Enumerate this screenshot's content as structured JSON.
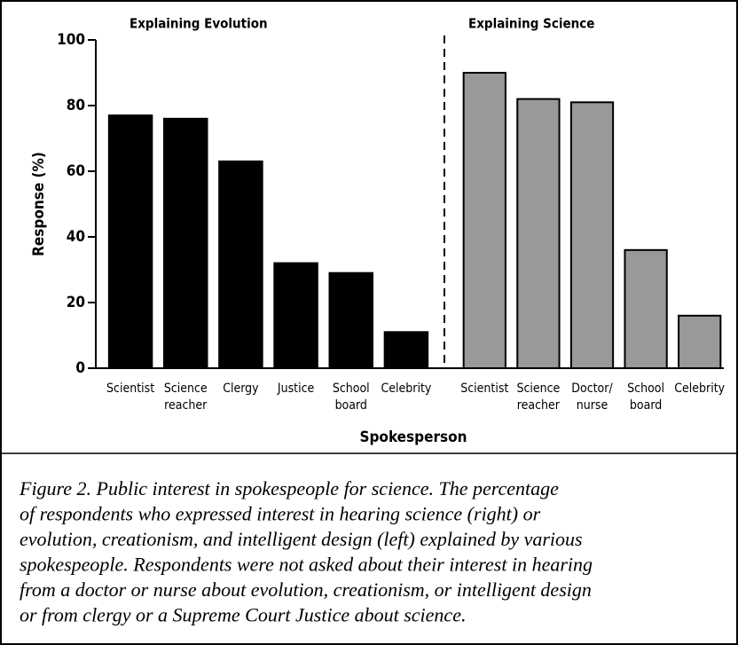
{
  "chart_data": [
    {
      "type": "bar",
      "title": "Explaining Evolution",
      "categories": [
        "Scientist",
        "Science\nreacher",
        "Clergy",
        "Justice",
        "School\nboard",
        "Celebrity"
      ],
      "values": [
        77,
        76,
        63,
        32,
        29,
        11
      ],
      "color": "#000000",
      "ylabel": "Response (%)",
      "xlabel": "Spokesperson",
      "ylim": [
        0,
        100
      ],
      "yticks": [
        0,
        20,
        40,
        60,
        80,
        100
      ]
    },
    {
      "type": "bar",
      "title": "Explaining Science",
      "categories": [
        "Scientist",
        "Science\nreacher",
        "Doctor/\nnurse",
        "School\nboard",
        "Celebrity"
      ],
      "values": [
        90,
        82,
        81,
        36,
        16
      ],
      "color": "#999999",
      "ylim": [
        0,
        100
      ]
    }
  ],
  "caption": [
    "Figure 2.  Public interest in spokespeople for science. The percentage",
    "of respondents who expressed interest in hearing science (right) or",
    "evolution, creationism, and intelligent design (left) explained by various",
    "spokespeople. Respondents were not asked about their interest in hearing",
    "from a doctor or nurse about evolution, creationism, or intelligent design",
    "or from clergy or a Supreme Court Justice about science."
  ]
}
